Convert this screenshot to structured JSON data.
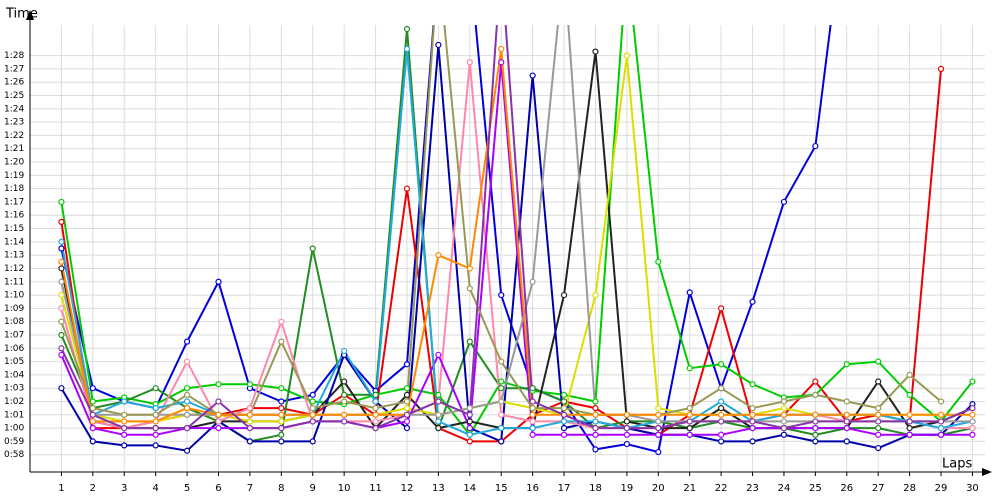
{
  "chart_data": {
    "type": "line",
    "title": "Time",
    "x_label": "Laps",
    "x": [
      1,
      2,
      3,
      4,
      5,
      6,
      7,
      8,
      9,
      10,
      11,
      12,
      13,
      14,
      15,
      16,
      17,
      18,
      19,
      20,
      21,
      22,
      23,
      24,
      25,
      26,
      27,
      28,
      29,
      30
    ],
    "xlim": [
      0,
      30.4
    ],
    "xticks": [
      1,
      2,
      3,
      4,
      5,
      6,
      7,
      8,
      9,
      10,
      11,
      12,
      13,
      14,
      15,
      16,
      17,
      18,
      19,
      20,
      21,
      22,
      23,
      24,
      25,
      26,
      27,
      28,
      29,
      30
    ],
    "ylim": [
      56.7,
      90.3
    ],
    "yticks": [
      {
        "value": 58,
        "label": "0:58"
      },
      {
        "value": 59,
        "label": "0:59"
      },
      {
        "value": 60,
        "label": "1:00"
      },
      {
        "value": 61,
        "label": "1:01"
      },
      {
        "value": 62,
        "label": "1:02"
      },
      {
        "value": 63,
        "label": "1:03"
      },
      {
        "value": 64,
        "label": "1:04"
      },
      {
        "value": 65,
        "label": "1:05"
      },
      {
        "value": 66,
        "label": "1:06"
      },
      {
        "value": 67,
        "label": "1:07"
      },
      {
        "value": 68,
        "label": "1:08"
      },
      {
        "value": 69,
        "label": "1:09"
      },
      {
        "value": 70,
        "label": "1:10"
      },
      {
        "value": 71,
        "label": "1:11"
      },
      {
        "value": 72,
        "label": "1:12"
      },
      {
        "value": 73,
        "label": "1:13"
      },
      {
        "value": 74,
        "label": "1:14"
      },
      {
        "value": 75,
        "label": "1:15"
      },
      {
        "value": 76,
        "label": "1:16"
      },
      {
        "value": 77,
        "label": "1:17"
      },
      {
        "value": 78,
        "label": "1:18"
      },
      {
        "value": 79,
        "label": "1:19"
      },
      {
        "value": 80,
        "label": "1:20"
      },
      {
        "value": 81,
        "label": "1:21"
      },
      {
        "value": 82,
        "label": "1:22"
      },
      {
        "value": 83,
        "label": "1:23"
      },
      {
        "value": 84,
        "label": "1:24"
      },
      {
        "value": 85,
        "label": "1:25"
      },
      {
        "value": 86,
        "label": "1:26"
      },
      {
        "value": 87,
        "label": "1:27"
      },
      {
        "value": 88,
        "label": "1:28"
      }
    ],
    "grid": true,
    "series": [
      {
        "color": "#0000dd",
        "values": [
          73.5,
          63,
          62,
          61.5,
          66.5,
          71,
          63,
          62,
          62.5,
          65.5,
          62.8,
          64.8,
          95,
          95,
          70,
          63,
          62,
          58.4,
          58.8,
          58.2,
          70.2,
          63,
          69.5,
          77,
          81.2,
          100,
          null,
          null,
          null,
          null
        ]
      },
      {
        "color": "#ee0000",
        "values": [
          75.5,
          60,
          60,
          60.5,
          61,
          61,
          61.5,
          61.5,
          61,
          62.5,
          61,
          78,
          60,
          59,
          59,
          61,
          62,
          61.5,
          60,
          59.5,
          61,
          69,
          60.5,
          61,
          63.5,
          60.5,
          61,
          60.5,
          87,
          null
        ]
      },
      {
        "color": "#00cc00",
        "values": [
          77,
          62,
          62.3,
          61.8,
          63,
          63.3,
          63.3,
          63,
          62,
          61.8,
          62.5,
          63,
          62.5,
          59.5,
          63.5,
          62.8,
          62.5,
          62,
          95,
          72.5,
          64.5,
          64.8,
          63.3,
          62.3,
          62.5,
          64.8,
          65,
          62.5,
          60.5,
          63.5
        ]
      },
      {
        "color": "#228b22",
        "values": [
          67,
          61.5,
          62,
          63,
          61.5,
          60.5,
          59,
          59.5,
          73.5,
          62.5,
          62.5,
          90,
          60,
          66.5,
          63,
          63,
          62,
          60,
          60.5,
          60.5,
          60,
          60.5,
          60,
          60,
          59.5,
          60,
          60,
          59.5,
          59.5,
          60
        ]
      },
      {
        "color": "#222222",
        "values": [
          72,
          60.5,
          60,
          60,
          60,
          60.5,
          60.5,
          60.5,
          61,
          63.5,
          60,
          62.5,
          60,
          60.5,
          60,
          60,
          70,
          88.3,
          60.5,
          60,
          60,
          61.5,
          60,
          60,
          60,
          60,
          63.5,
          60,
          60.5,
          61.5
        ]
      },
      {
        "color": "#0000aa",
        "values": [
          63,
          59,
          58.7,
          58.7,
          58.3,
          60.5,
          59,
          59,
          59,
          65.5,
          62,
          60,
          88.8,
          60,
          59,
          86.5,
          60,
          60.5,
          60,
          59.5,
          59.5,
          59,
          59,
          59.5,
          59,
          59,
          58.5,
          59.5,
          59.5,
          61.8
        ]
      },
      {
        "color": "#dddd00",
        "values": [
          70,
          61,
          60.5,
          60.5,
          61,
          61,
          60.5,
          60.5,
          61,
          61,
          61,
          61.5,
          61,
          61.5,
          62,
          61.5,
          61,
          70,
          88,
          61.5,
          61,
          61,
          61,
          61.5,
          61,
          61,
          61,
          61,
          61,
          null
        ]
      },
      {
        "color": "#ff88aa",
        "values": [
          69,
          60.5,
          60,
          60.5,
          65,
          60.5,
          61.5,
          68,
          60.5,
          60.5,
          60.5,
          61,
          62,
          87.5,
          61,
          60.5,
          60.5,
          60,
          60,
          60,
          60.5,
          60.5,
          60.5,
          61,
          61,
          60.5,
          60.5,
          60.5,
          60,
          60
        ]
      },
      {
        "color": "#aa00ff",
        "values": [
          65.5,
          60,
          59.5,
          59.5,
          60,
          60,
          60,
          60,
          60.5,
          60.5,
          60,
          60.5,
          65.5,
          60,
          87.5,
          59.5,
          59.5,
          59.5,
          59.5,
          59.5,
          59.5,
          59.5,
          60,
          60,
          60,
          60,
          59.5,
          59.5,
          59.5,
          59.5
        ]
      },
      {
        "color": "#22aadd",
        "values": [
          74,
          61,
          62,
          61.5,
          62,
          61,
          61,
          61,
          61,
          65.8,
          62,
          88.5,
          60.5,
          59.5,
          60,
          60,
          60.5,
          60.5,
          60,
          60.5,
          60.5,
          62,
          60.5,
          61,
          61,
          61,
          61,
          60.5,
          60,
          60.5
        ]
      },
      {
        "color": "#999999",
        "values": [
          71,
          61,
          61,
          61,
          61,
          61,
          61,
          61,
          61,
          61,
          61,
          61,
          61,
          61.5,
          62,
          71,
          95,
          61,
          61,
          60.5,
          60.5,
          60.5,
          60.5,
          60.5,
          60.5,
          60.5,
          60.5,
          60.5,
          60.5,
          60.5
        ]
      },
      {
        "color": "#999955",
        "values": [
          68,
          61.5,
          61,
          61,
          62.5,
          61,
          61,
          66.5,
          61.5,
          62,
          61.5,
          62,
          95,
          70.5,
          65,
          61.5,
          61.5,
          61,
          61,
          61,
          61.5,
          63,
          61.5,
          62,
          62.5,
          62,
          61.5,
          64,
          62,
          null
        ]
      },
      {
        "color": "#ff8800",
        "values": [
          72.5,
          60.5,
          60.5,
          60.5,
          61.5,
          61,
          61,
          61,
          61,
          61,
          61,
          61,
          73,
          72,
          88.5,
          61,
          61,
          61,
          61,
          61,
          61,
          61,
          61,
          61,
          61,
          61,
          61,
          61,
          61,
          61
        ]
      },
      {
        "color": "#8833aa",
        "values": [
          66,
          61,
          60,
          60,
          60,
          62,
          60,
          60,
          60.5,
          60.5,
          60,
          61,
          62,
          61,
          95,
          62,
          61,
          60,
          60,
          60,
          60.5,
          60.5,
          60.5,
          60,
          60.5,
          60.5,
          60.5,
          60.5,
          60.5,
          61.5
        ]
      }
    ]
  }
}
